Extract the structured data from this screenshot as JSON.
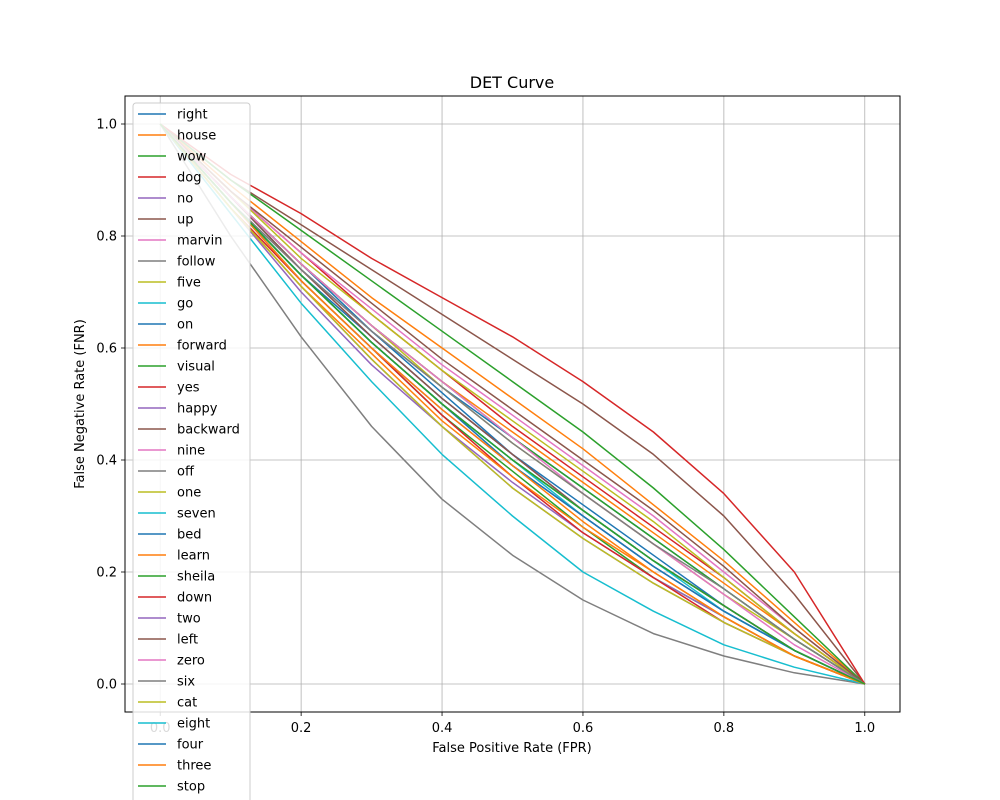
{
  "chart_data": {
    "type": "line",
    "title": "DET Curve",
    "xlabel": "False Positive Rate (FPR)",
    "ylabel": "False Negative Rate (FNR)",
    "xlim": [
      -0.05,
      1.05
    ],
    "ylim": [
      -0.05,
      1.05
    ],
    "xticks": [
      0.0,
      0.2,
      0.4,
      0.6,
      0.8,
      1.0
    ],
    "yticks": [
      0.0,
      0.2,
      0.4,
      0.6,
      0.8,
      1.0
    ],
    "xtick_labels": [
      "0.0",
      "0.2",
      "0.4",
      "0.6",
      "0.8",
      "1.0"
    ],
    "ytick_labels": [
      "0.0",
      "0.2",
      "0.4",
      "0.6",
      "0.8",
      "1.0"
    ],
    "grid": true,
    "legend_position": "upper-left",
    "x": [
      0.0,
      0.1,
      0.2,
      0.3,
      0.4,
      0.5,
      0.6,
      0.7,
      0.8,
      0.9,
      1.0
    ],
    "series": [
      {
        "name": "right",
        "color": "#1f77b4",
        "values": [
          1.0,
          0.87,
          0.74,
          0.63,
          0.53,
          0.44,
          0.35,
          0.26,
          0.17,
          0.08,
          0.0
        ]
      },
      {
        "name": "house",
        "color": "#ff7f0e",
        "values": [
          1.0,
          0.87,
          0.75,
          0.64,
          0.54,
          0.45,
          0.36,
          0.27,
          0.18,
          0.09,
          0.0
        ]
      },
      {
        "name": "wow",
        "color": "#2ca02c",
        "values": [
          1.0,
          0.86,
          0.72,
          0.6,
          0.48,
          0.38,
          0.28,
          0.19,
          0.12,
          0.05,
          0.0
        ]
      },
      {
        "name": "dog",
        "color": "#d62728",
        "values": [
          1.0,
          0.88,
          0.77,
          0.66,
          0.56,
          0.46,
          0.37,
          0.28,
          0.19,
          0.09,
          0.0
        ]
      },
      {
        "name": "no",
        "color": "#9467bd",
        "values": [
          1.0,
          0.85,
          0.7,
          0.57,
          0.46,
          0.36,
          0.27,
          0.19,
          0.12,
          0.05,
          0.0
        ]
      },
      {
        "name": "up",
        "color": "#8c564b",
        "values": [
          1.0,
          0.9,
          0.82,
          0.74,
          0.66,
          0.58,
          0.5,
          0.41,
          0.3,
          0.16,
          0.0
        ]
      },
      {
        "name": "marvin",
        "color": "#e377c2",
        "values": [
          1.0,
          0.88,
          0.77,
          0.67,
          0.57,
          0.48,
          0.39,
          0.3,
          0.2,
          0.1,
          0.0
        ]
      },
      {
        "name": "follow",
        "color": "#7f7f7f",
        "values": [
          1.0,
          0.86,
          0.73,
          0.61,
          0.5,
          0.4,
          0.31,
          0.22,
          0.14,
          0.06,
          0.0
        ]
      },
      {
        "name": "five",
        "color": "#bcbd22",
        "values": [
          1.0,
          0.88,
          0.76,
          0.66,
          0.56,
          0.47,
          0.38,
          0.29,
          0.19,
          0.09,
          0.0
        ]
      },
      {
        "name": "go",
        "color": "#17becf",
        "values": [
          1.0,
          0.86,
          0.73,
          0.61,
          0.5,
          0.4,
          0.3,
          0.21,
          0.13,
          0.06,
          0.0
        ]
      },
      {
        "name": "on",
        "color": "#1f77b4",
        "values": [
          1.0,
          0.87,
          0.75,
          0.63,
          0.52,
          0.41,
          0.31,
          0.22,
          0.14,
          0.06,
          0.0
        ]
      },
      {
        "name": "forward",
        "color": "#ff7f0e",
        "values": [
          1.0,
          0.89,
          0.79,
          0.69,
          0.6,
          0.51,
          0.42,
          0.32,
          0.22,
          0.11,
          0.0
        ]
      },
      {
        "name": "visual",
        "color": "#2ca02c",
        "values": [
          1.0,
          0.9,
          0.81,
          0.72,
          0.63,
          0.54,
          0.45,
          0.35,
          0.24,
          0.12,
          0.0
        ]
      },
      {
        "name": "yes",
        "color": "#d62728",
        "values": [
          1.0,
          0.85,
          0.72,
          0.6,
          0.48,
          0.37,
          0.27,
          0.19,
          0.11,
          0.05,
          0.0
        ]
      },
      {
        "name": "happy",
        "color": "#9467bd",
        "values": [
          1.0,
          0.85,
          0.71,
          0.58,
          0.46,
          0.35,
          0.26,
          0.18,
          0.11,
          0.05,
          0.0
        ]
      },
      {
        "name": "backward",
        "color": "#8c564b",
        "values": [
          1.0,
          0.88,
          0.78,
          0.68,
          0.58,
          0.49,
          0.4,
          0.31,
          0.21,
          0.1,
          0.0
        ]
      },
      {
        "name": "nine",
        "color": "#e377c2",
        "values": [
          1.0,
          0.86,
          0.74,
          0.62,
          0.51,
          0.41,
          0.31,
          0.22,
          0.14,
          0.06,
          0.0
        ]
      },
      {
        "name": "off",
        "color": "#7f7f7f",
        "values": [
          1.0,
          0.8,
          0.62,
          0.46,
          0.33,
          0.23,
          0.15,
          0.09,
          0.05,
          0.02,
          0.0
        ]
      },
      {
        "name": "one",
        "color": "#bcbd22",
        "values": [
          1.0,
          0.87,
          0.75,
          0.64,
          0.53,
          0.43,
          0.34,
          0.25,
          0.16,
          0.08,
          0.0
        ]
      },
      {
        "name": "seven",
        "color": "#17becf",
        "values": [
          1.0,
          0.84,
          0.68,
          0.54,
          0.41,
          0.3,
          0.2,
          0.13,
          0.07,
          0.03,
          0.0
        ]
      },
      {
        "name": "bed",
        "color": "#1f77b4",
        "values": [
          1.0,
          0.86,
          0.73,
          0.62,
          0.51,
          0.41,
          0.32,
          0.23,
          0.14,
          0.06,
          0.0
        ]
      },
      {
        "name": "learn",
        "color": "#ff7f0e",
        "values": [
          1.0,
          0.85,
          0.71,
          0.59,
          0.47,
          0.37,
          0.28,
          0.2,
          0.12,
          0.05,
          0.0
        ]
      },
      {
        "name": "sheila",
        "color": "#2ca02c",
        "values": [
          1.0,
          0.87,
          0.75,
          0.64,
          0.54,
          0.44,
          0.35,
          0.26,
          0.17,
          0.08,
          0.0
        ]
      },
      {
        "name": "down",
        "color": "#d62728",
        "values": [
          1.0,
          0.91,
          0.84,
          0.76,
          0.69,
          0.62,
          0.54,
          0.45,
          0.34,
          0.2,
          0.0
        ]
      },
      {
        "name": "two",
        "color": "#9467bd",
        "values": [
          1.0,
          0.86,
          0.72,
          0.6,
          0.49,
          0.39,
          0.3,
          0.21,
          0.13,
          0.06,
          0.0
        ]
      },
      {
        "name": "left",
        "color": "#8c564b",
        "values": [
          1.0,
          0.87,
          0.74,
          0.62,
          0.51,
          0.41,
          0.31,
          0.22,
          0.14,
          0.06,
          0.0
        ]
      },
      {
        "name": "zero",
        "color": "#e377c2",
        "values": [
          1.0,
          0.87,
          0.75,
          0.64,
          0.54,
          0.44,
          0.34,
          0.25,
          0.16,
          0.07,
          0.0
        ]
      },
      {
        "name": "six",
        "color": "#7f7f7f",
        "values": [
          1.0,
          0.86,
          0.74,
          0.63,
          0.53,
          0.43,
          0.34,
          0.25,
          0.17,
          0.08,
          0.0
        ]
      },
      {
        "name": "cat",
        "color": "#bcbd22",
        "values": [
          1.0,
          0.85,
          0.71,
          0.58,
          0.46,
          0.35,
          0.26,
          0.18,
          0.11,
          0.05,
          0.0
        ]
      },
      {
        "name": "eight",
        "color": "#17becf",
        "values": [
          1.0,
          0.86,
          0.73,
          0.61,
          0.5,
          0.4,
          0.31,
          0.22,
          0.13,
          0.06,
          0.0
        ]
      },
      {
        "name": "four",
        "color": "#1f77b4",
        "values": [
          1.0,
          0.86,
          0.73,
          0.61,
          0.5,
          0.39,
          0.3,
          0.21,
          0.13,
          0.06,
          0.0
        ]
      },
      {
        "name": "three",
        "color": "#ff7f0e",
        "values": [
          1.0,
          0.86,
          0.72,
          0.6,
          0.49,
          0.39,
          0.29,
          0.2,
          0.12,
          0.05,
          0.0
        ]
      },
      {
        "name": "stop",
        "color": "#2ca02c",
        "values": [
          1.0,
          0.86,
          0.73,
          0.61,
          0.5,
          0.4,
          0.31,
          0.22,
          0.14,
          0.06,
          0.0
        ]
      }
    ]
  }
}
